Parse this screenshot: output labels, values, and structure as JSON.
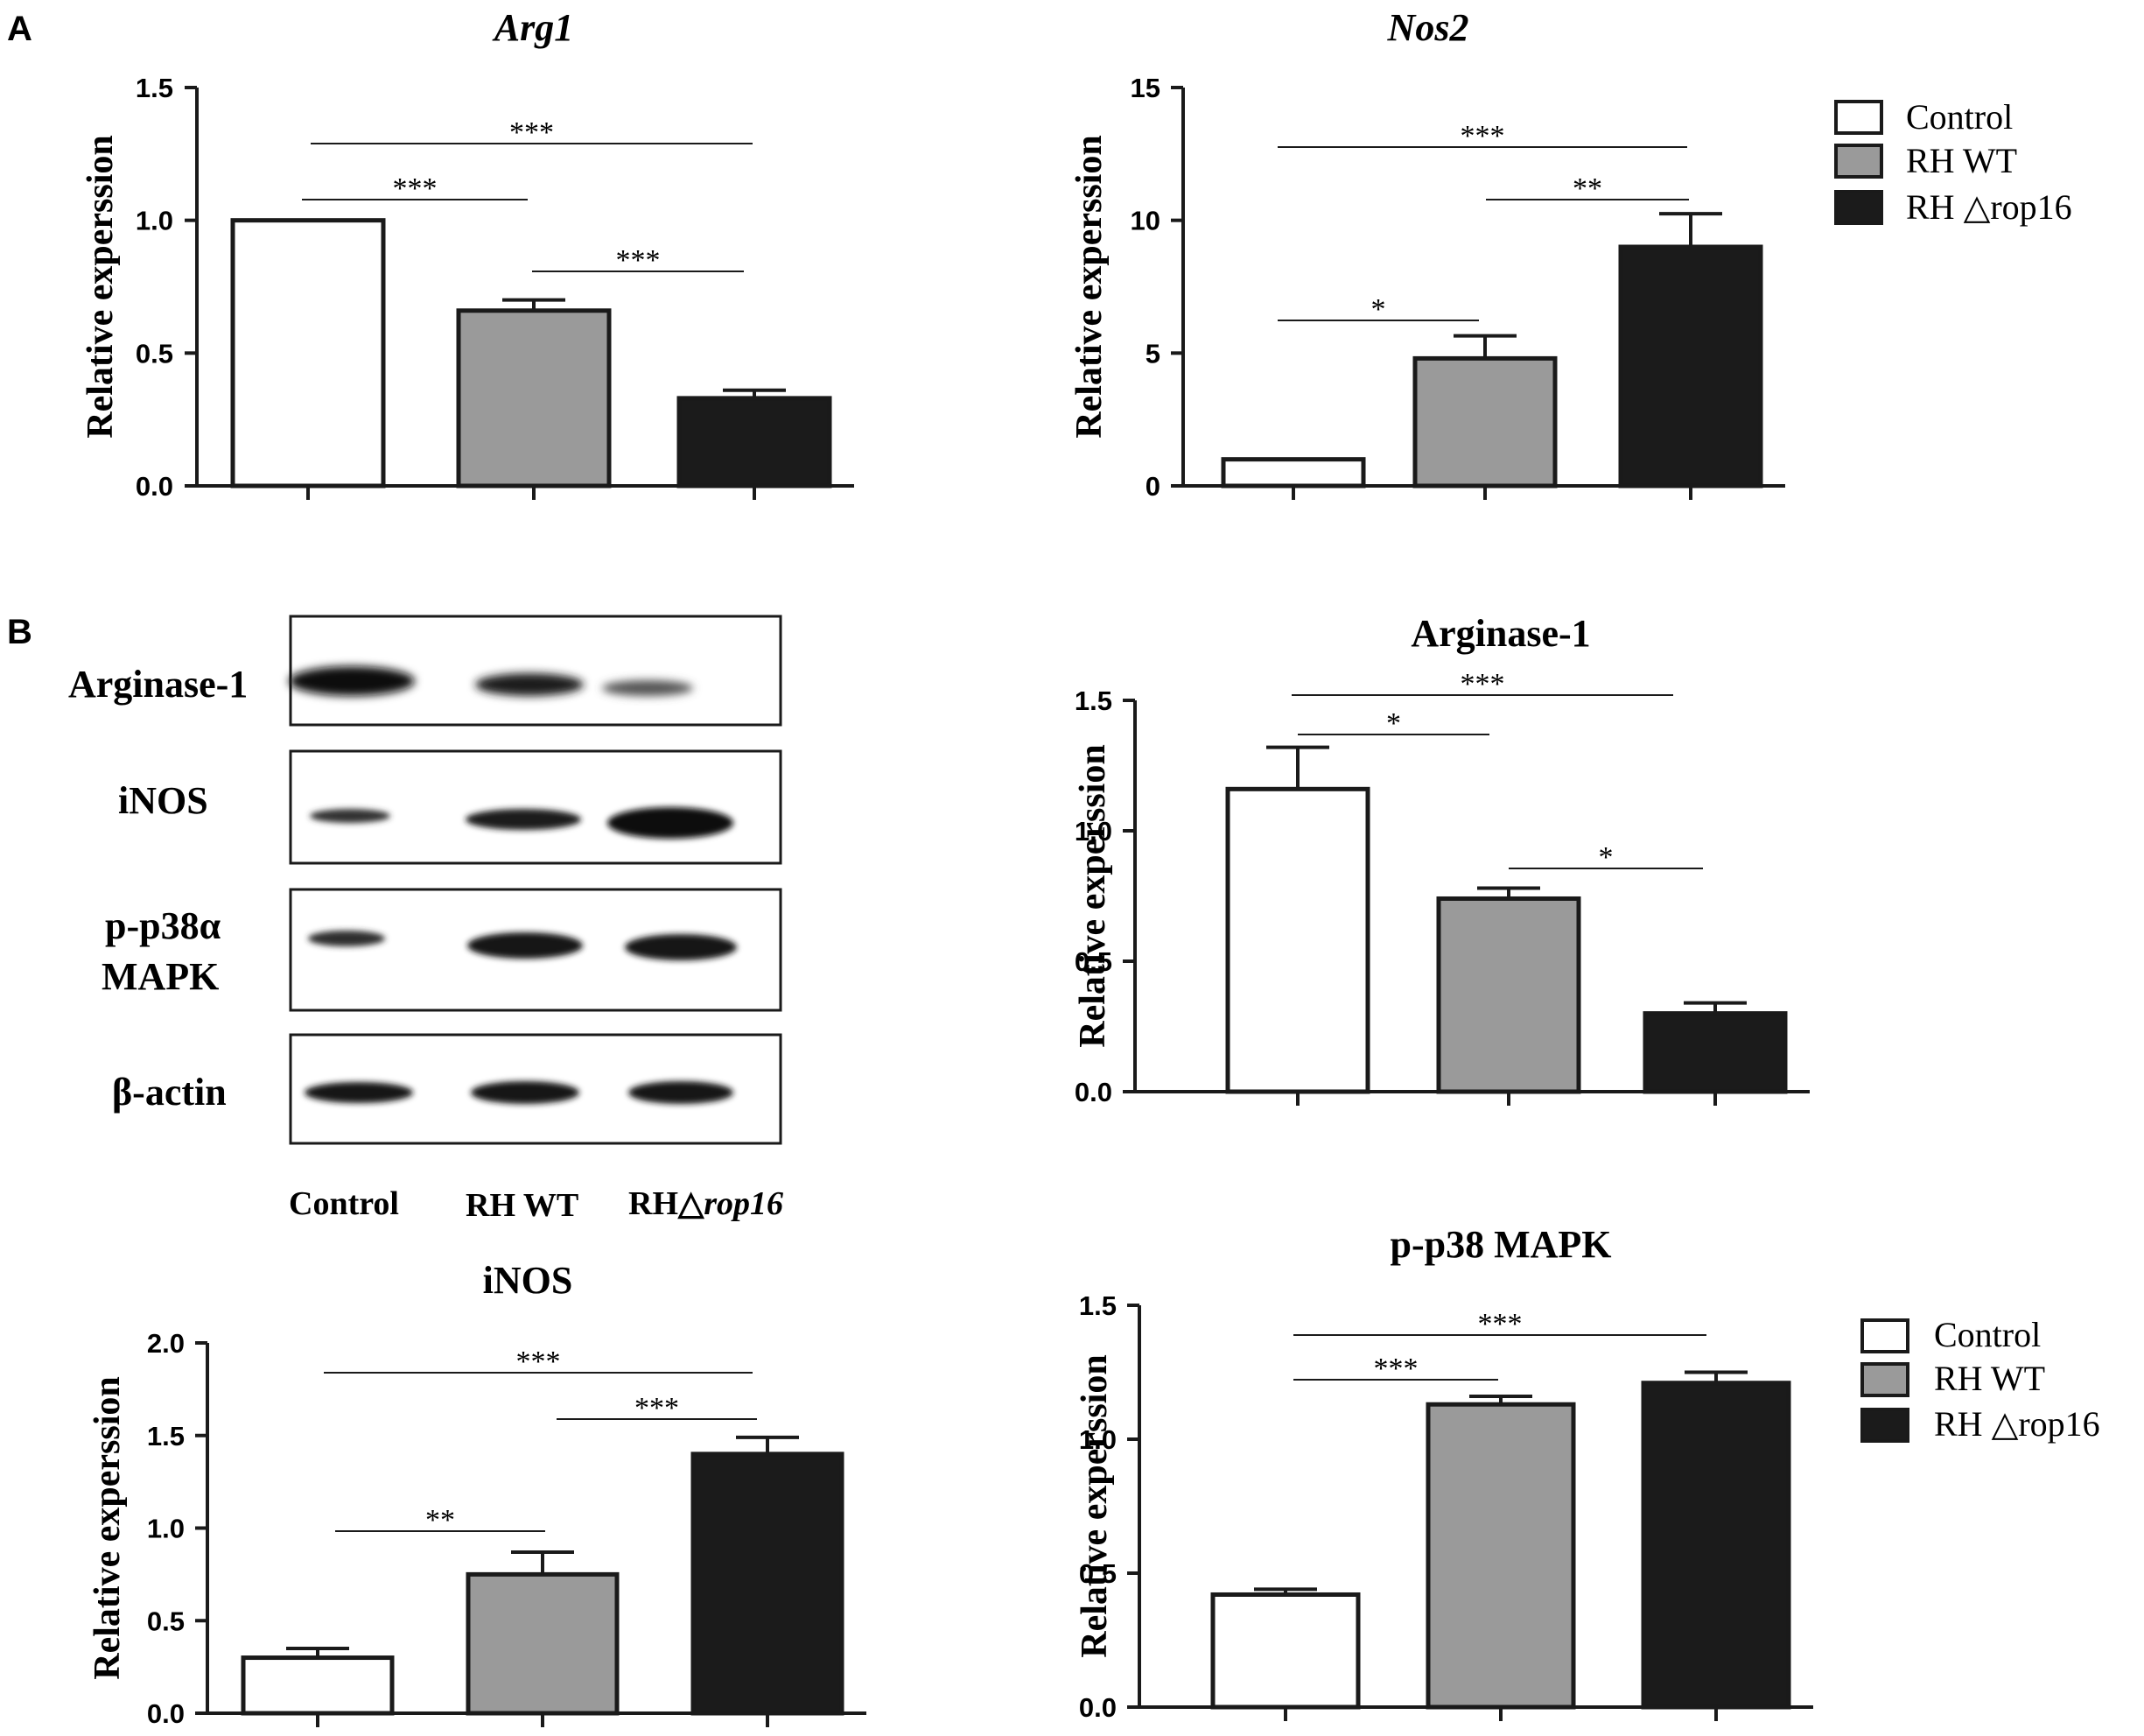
{
  "panels": {
    "a": "A",
    "b": "B"
  },
  "legend": [
    "Control",
    "RH WT",
    "RH △rop16"
  ],
  "colors": {
    "Control": "#ffffff",
    "RH WT": "#9a9a9a",
    "RH △rop16": "#1b1b1b",
    "axis": "#1a1a1a"
  },
  "blot": {
    "rows": [
      "Arginase-1",
      "iNOS",
      "p-p38α",
      "MAPK",
      "β-actin"
    ],
    "lanes": {
      "control": "Control",
      "wt": "RH WT",
      "rop_prefix": "RH△",
      "rop_gene": "rop16"
    }
  },
  "chart_data": [
    {
      "id": "arg1",
      "type": "bar",
      "title": "Arg1",
      "ylabel": "Relative experssion",
      "categories": [
        "Control",
        "RH WT",
        "RH △rop16"
      ],
      "values": [
        1.0,
        0.66,
        0.33
      ],
      "errors": [
        0,
        0.04,
        0.03
      ],
      "ylim": [
        0,
        1.5
      ],
      "yticks": [
        "0.0",
        "0.5",
        "1.0",
        "1.5"
      ],
      "significance": [
        {
          "from": 0,
          "to": 1,
          "label": "***"
        },
        {
          "from": 1,
          "to": 2,
          "label": "***"
        },
        {
          "from": 0,
          "to": 2,
          "label": "***"
        }
      ]
    },
    {
      "id": "nos2",
      "type": "bar",
      "title": "Nos2",
      "ylabel": "Relative experssion",
      "categories": [
        "Control",
        "RH WT",
        "RH △rop16"
      ],
      "values": [
        1.0,
        4.8,
        9.0
      ],
      "errors": [
        0,
        0.85,
        1.25
      ],
      "ylim": [
        0,
        15
      ],
      "yticks": [
        "0",
        "5",
        "10",
        "15"
      ],
      "significance": [
        {
          "from": 0,
          "to": 1,
          "label": "*"
        },
        {
          "from": 1,
          "to": 2,
          "label": "**"
        },
        {
          "from": 0,
          "to": 2,
          "label": "***"
        }
      ],
      "legend": "top-right"
    },
    {
      "id": "arginase",
      "type": "bar",
      "title": "Arginase-1",
      "ylabel": "Relative experssion",
      "categories": [
        "Control",
        "RH WT",
        "RH △rop16"
      ],
      "values": [
        1.16,
        0.74,
        0.3
      ],
      "errors": [
        0.16,
        0.04,
        0.04
      ],
      "ylim": [
        0,
        1.5
      ],
      "yticks": [
        "0.0",
        "0.5",
        "1.0",
        "1.5"
      ],
      "significance": [
        {
          "from": 0,
          "to": 1,
          "label": "*"
        },
        {
          "from": 1,
          "to": 2,
          "label": "*"
        },
        {
          "from": 0,
          "to": 2,
          "label": "***"
        }
      ]
    },
    {
      "id": "inos",
      "type": "bar",
      "title": "iNOS",
      "ylabel": "Relative experssion",
      "categories": [
        "Control",
        "RH WT",
        "RH △rop16"
      ],
      "values": [
        0.3,
        0.75,
        1.4
      ],
      "errors": [
        0.05,
        0.12,
        0.09
      ],
      "ylim": [
        0,
        2.0
      ],
      "yticks": [
        "0.0",
        "0.5",
        "1.0",
        "1.5",
        "2.0"
      ],
      "significance": [
        {
          "from": 0,
          "to": 1,
          "label": "**"
        },
        {
          "from": 1,
          "to": 2,
          "label": "***"
        },
        {
          "from": 0,
          "to": 2,
          "label": "***"
        }
      ]
    },
    {
      "id": "p38",
      "type": "bar",
      "title": "p-p38 MAPK",
      "ylabel": "Relative experssion",
      "categories": [
        "Control",
        "RH WT",
        "RH △rop16"
      ],
      "values": [
        0.42,
        1.13,
        1.21
      ],
      "errors": [
        0.02,
        0.03,
        0.04
      ],
      "ylim": [
        0,
        1.5
      ],
      "yticks": [
        "0.0",
        "0.5",
        "1.0",
        "1.5"
      ],
      "significance": [
        {
          "from": 0,
          "to": 1,
          "label": "***"
        },
        {
          "from": 0,
          "to": 2,
          "label": "***"
        }
      ],
      "legend": "right"
    }
  ]
}
